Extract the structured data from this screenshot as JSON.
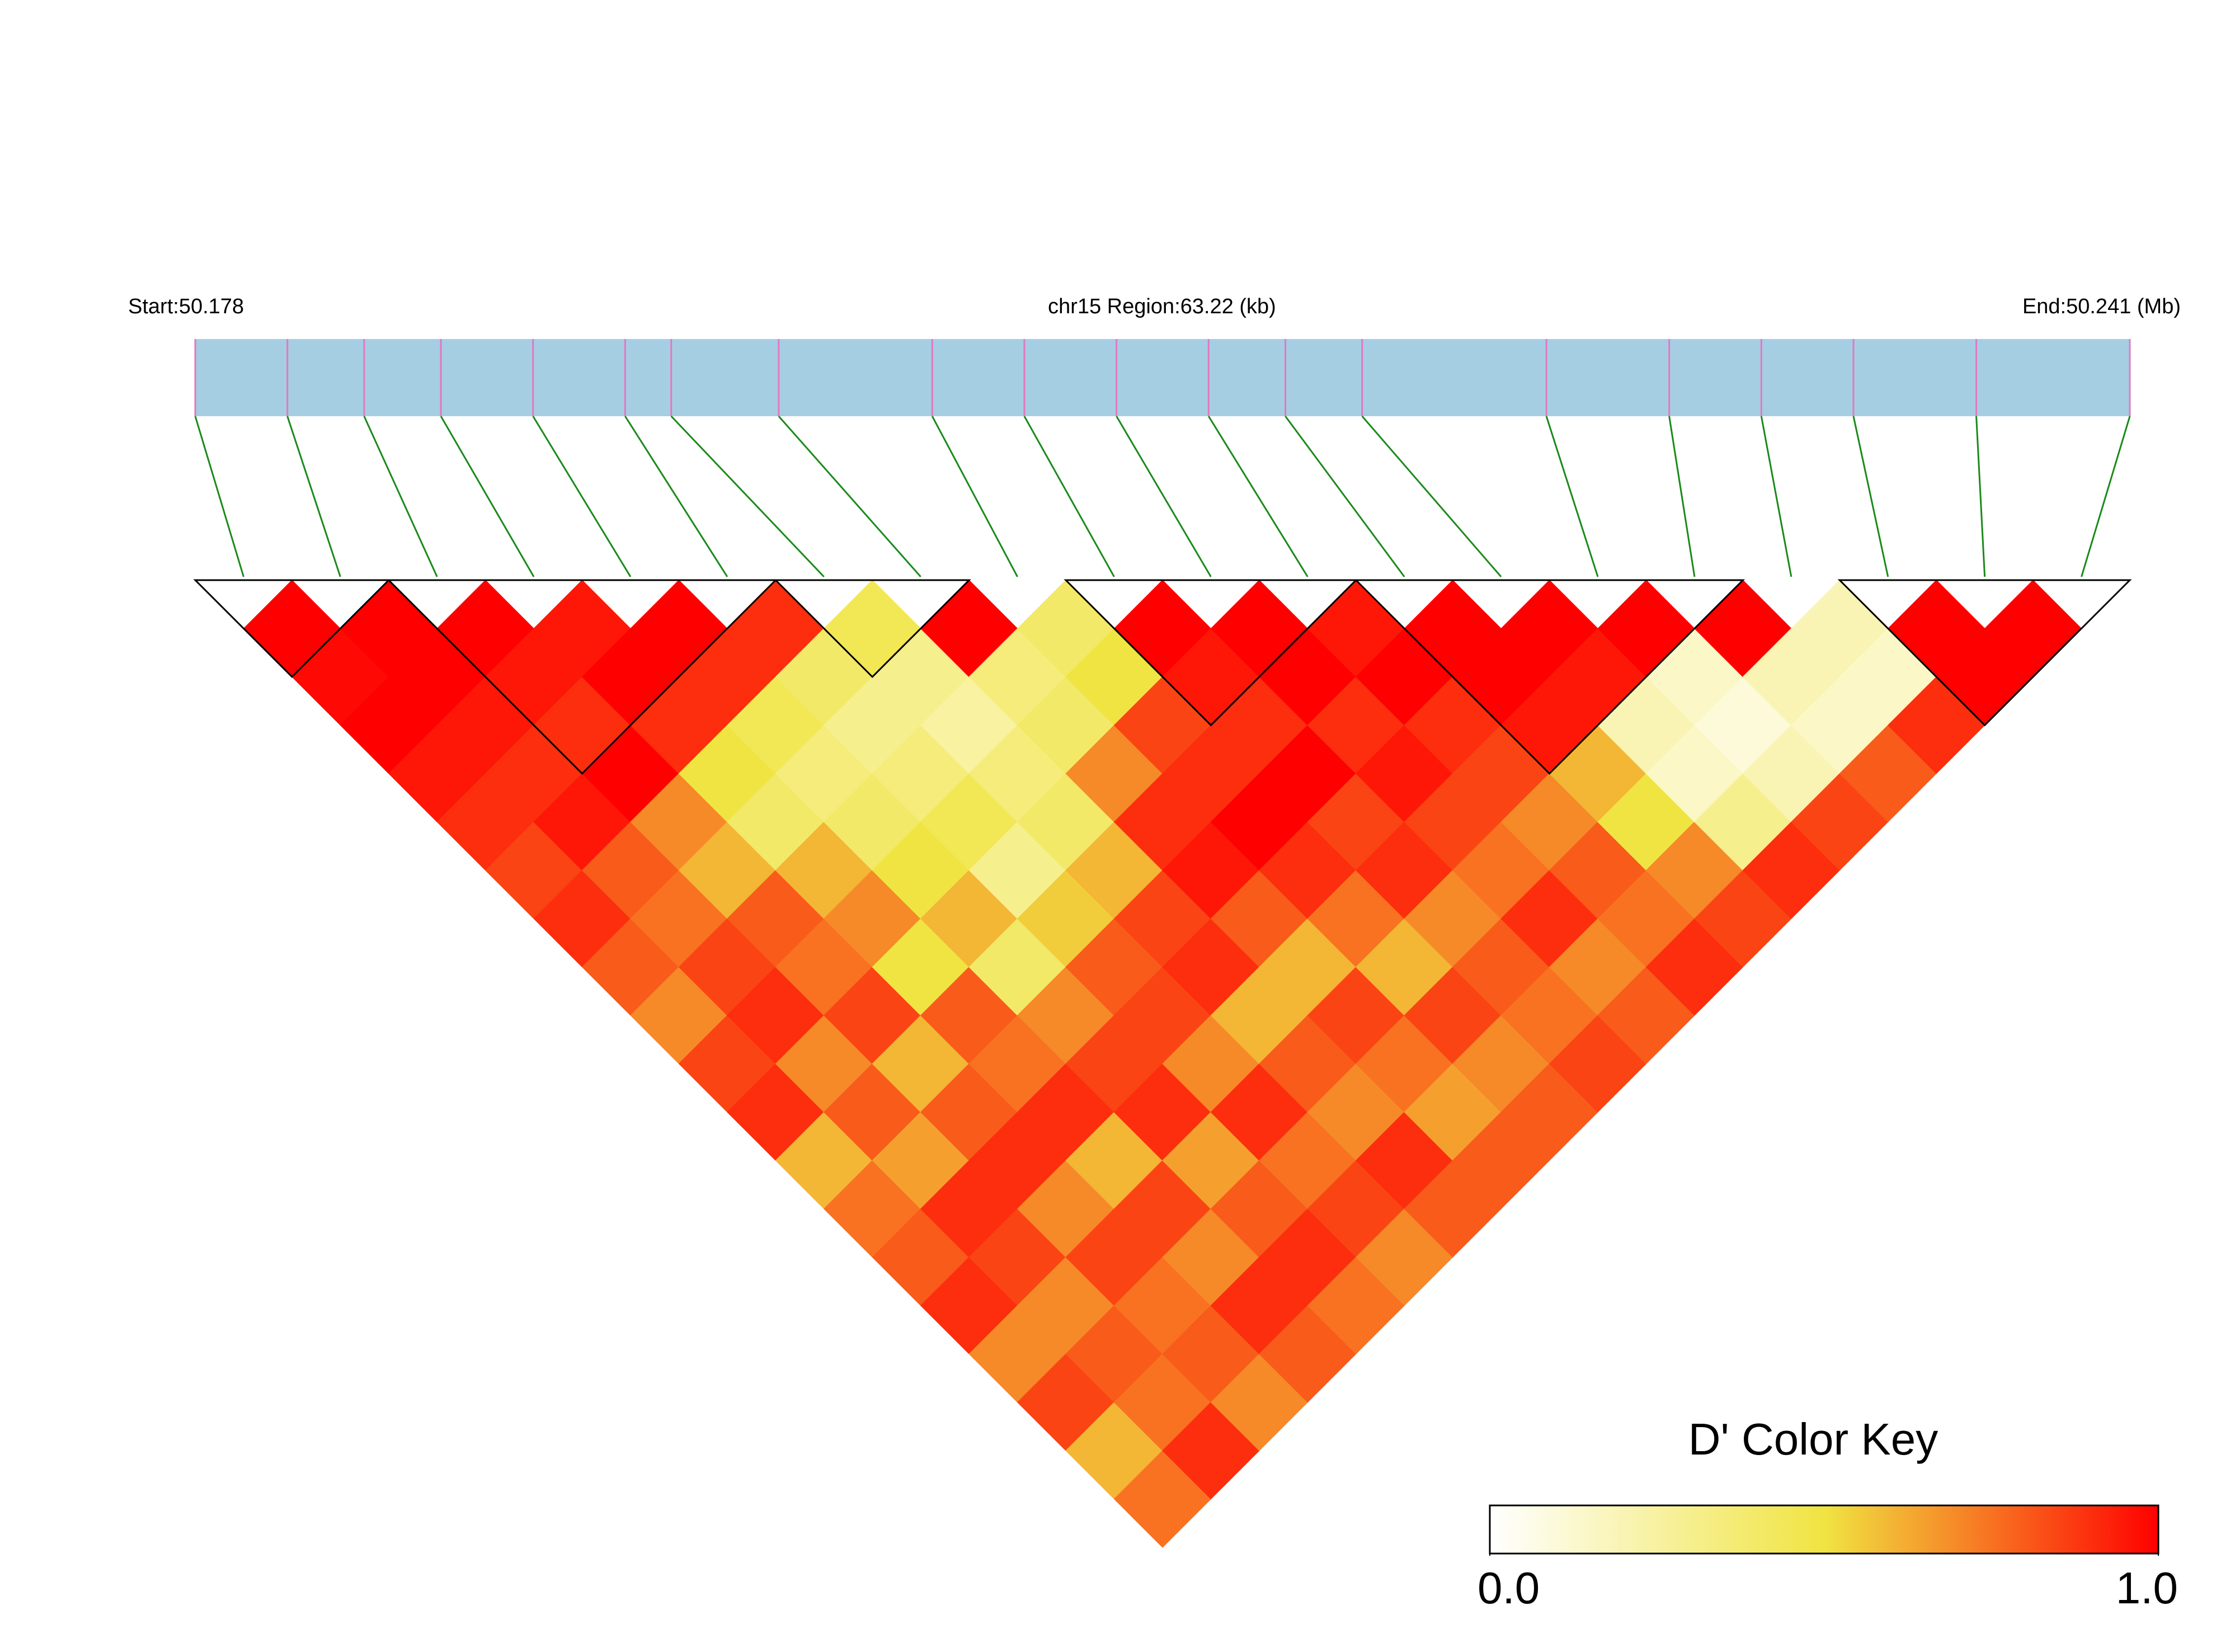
{
  "chart_data": {
    "type": "ld_heatmap",
    "start_label": "Start:50.178",
    "region_label": "chr15 Region:63.22 (kb)",
    "end_label": "End:50.241 (Mb)",
    "xlim": [
      50.178,
      50.241
    ],
    "snp_positions": [
      50.178,
      50.181,
      50.1835,
      50.186,
      50.189,
      50.192,
      50.1935,
      50.197,
      50.202,
      50.205,
      50.208,
      50.211,
      50.2135,
      50.216,
      50.222,
      50.226,
      50.229,
      50.232,
      50.236,
      50.241
    ],
    "ld": [
      [
        1,
        0.98,
        1,
        0.95,
        0.9,
        0.85,
        0.9,
        0.8,
        0.7,
        0.85,
        0.9,
        0.6,
        0.75,
        0.8,
        0.9,
        0.7,
        0.85,
        0.6,
        0.75
      ],
      [
        1,
        1,
        0.95,
        0.9,
        0.95,
        0.8,
        0.75,
        0.85,
        0.9,
        0.7,
        0.8,
        0.65,
        0.9,
        0.85,
        0.7,
        0.8,
        0.75,
        0.9
      ],
      [
        1,
        0.95,
        0.9,
        1,
        0.7,
        0.6,
        0.8,
        0.75,
        0.85,
        0.6,
        0.8,
        0.9,
        0.7,
        0.85,
        0.75,
        0.8,
        0.7
      ],
      [
        0.95,
        1,
        0.9,
        0.5,
        0.4,
        0.6,
        0.7,
        0.5,
        0.8,
        0.75,
        0.9,
        0.6,
        0.85,
        0.7,
        0.9,
        0.8
      ],
      [
        1,
        0.9,
        0.45,
        0.35,
        0.4,
        0.5,
        0.6,
        0.4,
        0.7,
        0.85,
        0.9,
        0.65,
        0.8,
        0.9,
        0.75
      ],
      [
        0.9,
        0.4,
        0.3,
        0.35,
        0.45,
        0.3,
        0.55,
        0.8,
        0.85,
        0.7,
        0.9,
        0.75,
        0.85,
        0.7
      ],
      [
        0.45,
        0.3,
        0.25,
        0.35,
        0.4,
        0.6,
        0.85,
        0.9,
        0.6,
        0.8,
        0.7,
        0.9,
        0.8
      ],
      [
        1,
        0.35,
        0.4,
        0.7,
        0.9,
        0.95,
        0.8,
        0.6,
        0.85,
        0.75,
        0.65,
        0.8
      ],
      [
        0.4,
        0.5,
        0.85,
        0.9,
        1,
        0.9,
        0.75,
        0.6,
        0.85,
        0.7,
        0.8
      ],
      [
        1,
        0.95,
        0.9,
        1,
        0.85,
        0.9,
        0.7,
        0.8,
        0.75,
        0.85
      ],
      [
        1,
        1,
        0.9,
        0.95,
        0.85,
        0.75,
        0.9,
        0.7,
        0.8
      ],
      [
        0.95,
        1,
        0.9,
        0.85,
        0.7,
        0.8,
        0.75,
        0.9
      ],
      [
        1,
        1,
        0.95,
        0.6,
        0.5,
        0.7,
        0.85
      ],
      [
        1,
        0.95,
        0.2,
        0.15,
        0.3,
        0.9
      ],
      [
        1,
        0.15,
        0.1,
        0.2,
        0.85
      ],
      [
        1,
        0.2,
        0.15,
        0.8
      ],
      [
        0.2,
        0.15,
        0.9
      ],
      [
        1,
        1
      ],
      [
        1
      ]
    ],
    "blocks": [
      [
        0,
        1
      ],
      [
        2,
        5
      ],
      [
        6,
        7
      ],
      [
        9,
        11
      ],
      [
        12,
        15
      ],
      [
        17,
        19
      ]
    ],
    "track_color": "#a6cee3",
    "snp_color": "#e377c2",
    "link_color": "#1a8a1a",
    "block_color": "#000000",
    "color_key_title": "D' Color Key",
    "colors": [
      "#ffffff",
      "#f0e442",
      "#ff0000"
    ],
    "clim": [
      0,
      1
    ],
    "cticks": [
      {
        "value": 0,
        "label": "0.0"
      },
      {
        "value": 1,
        "label": "1.0"
      }
    ]
  }
}
